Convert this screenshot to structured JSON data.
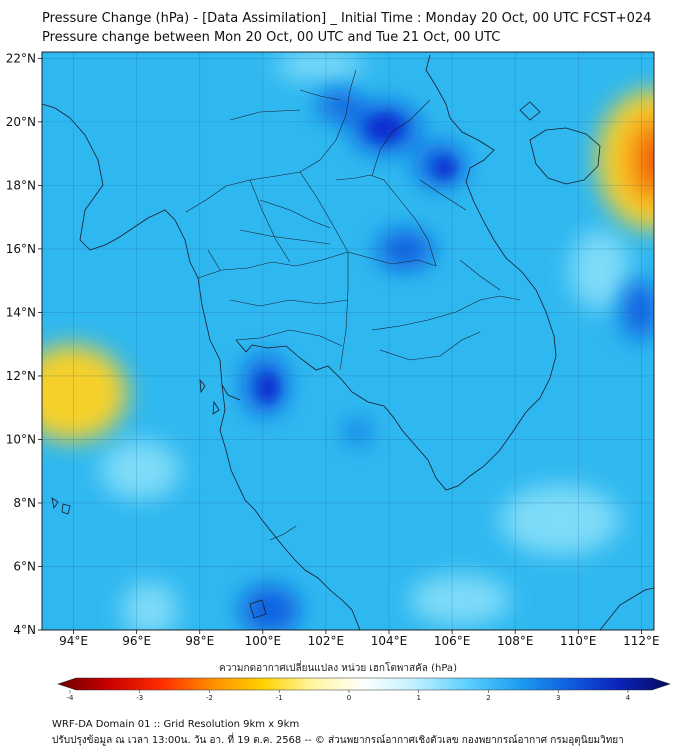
{
  "header": {
    "title_line1": "Pressure Change (hPa) - [Data Assimilation] _ Initial Time : Monday 20 Oct, 00 UTC FCST+024",
    "title_line2": "Pressure change between Mon 20 Oct, 00 UTC and Tue 21 Oct, 00 UTC"
  },
  "map": {
    "lat_labels": [
      "22°N",
      "20°N",
      "18°N",
      "16°N",
      "14°N",
      "12°N",
      "10°N",
      "8°N",
      "6°N",
      "4°N"
    ],
    "lat_values": [
      22,
      20,
      18,
      16,
      14,
      12,
      10,
      8,
      6,
      4
    ],
    "lon_labels": [
      "94°E",
      "96°E",
      "98°E",
      "100°E",
      "102°E",
      "104°E",
      "106°E",
      "108°E",
      "110°E",
      "112°E"
    ],
    "lon_values": [
      94,
      96,
      98,
      100,
      102,
      104,
      106,
      108,
      110,
      112
    ],
    "extent": {
      "lon_min": 93.0,
      "lon_max": 112.4,
      "lat_min": 4.0,
      "lat_max": 22.2
    },
    "field_colors": {
      "base": "#2fb8f0",
      "light": "#7fdcf8",
      "dark": "#1060e0",
      "darkest": "#0a2fd0",
      "warm_yellow": "#f6d02a",
      "warm_orange": "#f58a10",
      "warm_red": "#e8200a"
    }
  },
  "colorbar": {
    "ticks": [
      "-4",
      "-3",
      "-2",
      "-1",
      "0",
      "1",
      "2",
      "3",
      "4"
    ],
    "tick_values": [
      -4,
      -3,
      -2,
      -1,
      0,
      1,
      2,
      3,
      4
    ],
    "label": "ความกดอากาศเปลี่ยนแปลง หน่วย เฮกโตพาสคัล (hPa)",
    "stops": [
      "#6a0000",
      "#c80000",
      "#ff2a00",
      "#ff8c00",
      "#ffd000",
      "#fff6a0",
      "#ffffff",
      "#bff0ff",
      "#5fd0ff",
      "#1ea0f0",
      "#1060e0",
      "#0a22b8",
      "#060a60"
    ]
  },
  "footer": {
    "line1": "WRF-DA Domain 01 :: Grid Resolution 9km x 9km",
    "line2": "ปรับปรุงข้อมูล ณ เวลา 13:00น. วัน อา. ที่ 19 ต.ค. 2568 -- © ส่วนพยากรณ์อากาศเชิงตัวเลข กองพยากรณ์อากาศ กรมอุตุนิยมวิทยา"
  }
}
